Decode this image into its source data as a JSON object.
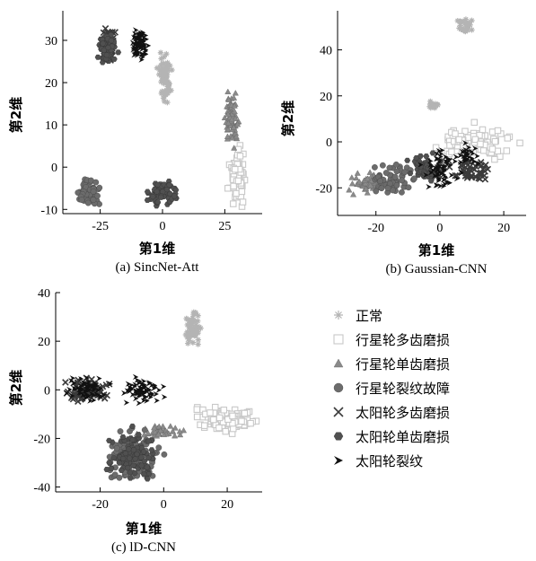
{
  "chart_data": [
    {
      "type": "scatter",
      "caption": "(a) SincNet-Att",
      "xlabel": "第1维",
      "ylabel": "第2维",
      "xlim": [
        -40,
        40
      ],
      "ylim": [
        -11,
        37
      ],
      "xticks": [
        -25,
        0,
        25
      ],
      "yticks": [
        -10,
        0,
        10,
        20,
        30
      ],
      "clusters": [
        {
          "series": "正常",
          "cx": 1,
          "cy": 21,
          "rx": 2.5,
          "ry": 5.5,
          "n": 70
        },
        {
          "series": "行星轮多齿磨损",
          "cx": 30,
          "cy": -2,
          "rx": 3,
          "ry": 6,
          "n": 80
        },
        {
          "series": "行星轮单齿磨损",
          "cx": 28,
          "cy": 11,
          "rx": 2.5,
          "ry": 5.5,
          "n": 70
        },
        {
          "series": "行星轮裂纹故障",
          "cx": -30,
          "cy": -6,
          "rx": 4.5,
          "ry": 2.8,
          "n": 70
        },
        {
          "series": "太阳轮多齿磨损",
          "cx": -22,
          "cy": 28.5,
          "rx": 2.5,
          "ry": 4.5,
          "n": 60
        },
        {
          "series": "太阳轮单齿磨损",
          "cx": -22,
          "cy": 28,
          "rx": 3.5,
          "ry": 3.5,
          "n": 70
        },
        {
          "series": "太阳轮单齿磨损",
          "cx": 0,
          "cy": -6,
          "rx": 5,
          "ry": 2.8,
          "n": 80
        },
        {
          "series": "太阳轮裂纹故障",
          "cx": -9,
          "cy": 29,
          "rx": 3,
          "ry": 4,
          "n": 80
        }
      ]
    },
    {
      "type": "scatter",
      "caption": "(b) Gaussian-CNN",
      "xlabel": "第1维",
      "ylabel": "第2维",
      "xlim": [
        -32,
        27
      ],
      "ylim": [
        -32,
        57
      ],
      "xticks": [
        -20,
        0,
        20
      ],
      "yticks": [
        -20,
        0,
        20,
        40
      ],
      "clusters": [
        {
          "series": "正常",
          "cx": 8,
          "cy": 50,
          "rx": 2.5,
          "ry": 3.5,
          "n": 30
        },
        {
          "series": "正常",
          "cx": -2,
          "cy": 16,
          "rx": 1.5,
          "ry": 2,
          "n": 14
        },
        {
          "series": "行星轮多齿磨损",
          "cx": 10,
          "cy": 0,
          "rx": 12,
          "ry": 6,
          "n": 110
        },
        {
          "series": "行星轮单齿磨损",
          "cx": -22,
          "cy": -18,
          "rx": 6,
          "ry": 4,
          "n": 60
        },
        {
          "series": "行星轮裂纹故障",
          "cx": -14,
          "cy": -16,
          "rx": 6,
          "ry": 6,
          "n": 60
        },
        {
          "series": "太阳轮多齿磨损",
          "cx": 10,
          "cy": -12,
          "rx": 6,
          "ry": 4.5,
          "n": 50
        },
        {
          "series": "太阳轮单齿磨损",
          "cx": -5,
          "cy": -12,
          "rx": 6,
          "ry": 6,
          "n": 60
        },
        {
          "series": "太阳轮裂纹故障",
          "cx": 0,
          "cy": -12,
          "rx": 5,
          "ry": 9,
          "n": 60
        },
        {
          "series": "太阳轮裂纹故障",
          "cx": 9,
          "cy": -6,
          "rx": 3,
          "ry": 4,
          "n": 30
        }
      ]
    },
    {
      "type": "scatter",
      "caption": "(c) lD-CNN",
      "xlabel": "第1维",
      "ylabel": "第2维",
      "xlim": [
        -34,
        31
      ],
      "ylim": [
        -42,
        40
      ],
      "xticks": [
        -20,
        0,
        20
      ],
      "yticks": [
        -40,
        -20,
        0,
        20,
        40
      ],
      "clusters": [
        {
          "series": "正常",
          "cx": 9,
          "cy": 26,
          "rx": 2.5,
          "ry": 7,
          "n": 60
        },
        {
          "series": "行星轮多齿磨损",
          "cx": 20,
          "cy": -12,
          "rx": 10,
          "ry": 5,
          "n": 110
        },
        {
          "series": "行星轮单齿磨损",
          "cx": 0,
          "cy": -17,
          "rx": 8,
          "ry": 2.5,
          "n": 40
        },
        {
          "series": "行星轮裂纹故障",
          "cx": -10,
          "cy": -27,
          "rx": 8,
          "ry": 10,
          "n": 120
        },
        {
          "series": "太阳轮多齿磨损",
          "cx": -24,
          "cy": 0,
          "rx": 7,
          "ry": 4.5,
          "n": 70
        },
        {
          "series": "太阳轮单齿磨损",
          "cx": -10,
          "cy": -27,
          "rx": 7,
          "ry": 10,
          "n": 100
        },
        {
          "series": "太阳轮裂纹故障",
          "cx": -24,
          "cy": 0,
          "rx": 6,
          "ry": 4.5,
          "n": 60
        },
        {
          "series": "太阳轮裂纹故障",
          "cx": -7,
          "cy": 0,
          "rx": 5,
          "ry": 5,
          "n": 70
        }
      ]
    }
  ],
  "legend": [
    {
      "label": "正常",
      "marker": "star",
      "color": "#b4b4b4"
    },
    {
      "label": "行星轮多齿磨损",
      "marker": "sq",
      "color": "#c8c8c8"
    },
    {
      "label": "行星轮单齿磨损",
      "marker": "tri",
      "color": "#8a8a8a"
    },
    {
      "label": "行星轮裂纹故障",
      "marker": "circ",
      "color": "#6c6c6c"
    },
    {
      "label": "太阳轮多齿磨损",
      "marker": "x",
      "color": "#3a3a3a"
    },
    {
      "label": "太阳轮单齿磨损",
      "marker": "hex",
      "color": "#505050"
    },
    {
      "label": "太阳轮裂纹",
      "marker": "arrow",
      "color": "#111111"
    }
  ],
  "series_styles": {
    "正常": {
      "marker": "star",
      "color": "#b4b4b4"
    },
    "行星轮多齿磨损": {
      "marker": "sq",
      "color": "#c8c8c8"
    },
    "行星轮单齿磨损": {
      "marker": "tri",
      "color": "#8a8a8a"
    },
    "行星轮裂纹故障": {
      "marker": "circ",
      "color": "#6c6c6c"
    },
    "太阳轮多齿磨损": {
      "marker": "x",
      "color": "#3a3a3a"
    },
    "太阳轮单齿磨损": {
      "marker": "hex",
      "color": "#505050"
    },
    "太阳轮裂纹故障": {
      "marker": "arrow",
      "color": "#111111"
    }
  }
}
